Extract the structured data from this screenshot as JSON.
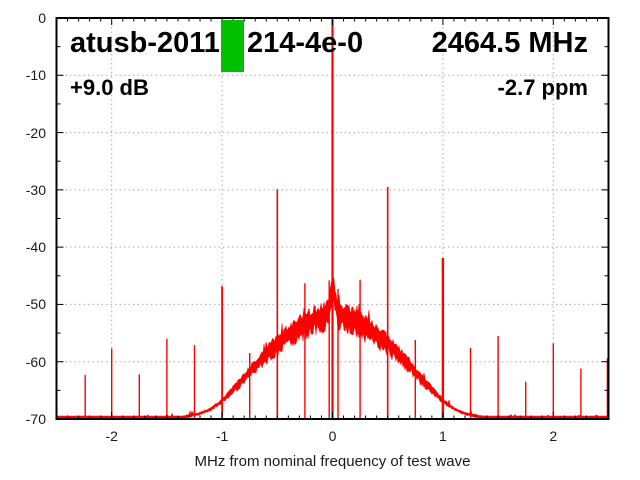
{
  "title": {
    "device_id_left": "atusb-2011",
    "device_id_right": "214-4e-0",
    "frequency": "2464.5 MHz"
  },
  "annotations": {
    "gain": "+9.0 dB",
    "ppm_offset": "-2.7 ppm"
  },
  "marker": {
    "color": "#00c000"
  },
  "colors": {
    "trace": "#ff0000",
    "grid": "#ababab",
    "border": "#000000",
    "tick_text": "#1a1a1a",
    "title_text": "#000000",
    "background": "#ffffff"
  },
  "chart_data": {
    "type": "line",
    "subtype": "rf-spectrum",
    "title": "atusb-2011[marker]214-4e-0  2464.5 MHz  (+9.0 dB, -2.7 ppm)",
    "xlabel": "MHz from nominal frequency of test wave",
    "ylabel": "",
    "xlim": [
      -2.5,
      2.5
    ],
    "ylim": [
      -70,
      0
    ],
    "grid": true,
    "x_ticks": [
      -2,
      -1,
      0,
      1,
      2
    ],
    "x_tick_labels": [
      "-2",
      "-1",
      "0",
      "1",
      "2"
    ],
    "x_minor_step": 0.1,
    "y_ticks": [
      0,
      -10,
      -20,
      -30,
      -40,
      -50,
      -60,
      -70
    ],
    "y_tick_labels": [
      "0",
      "-10",
      "-20",
      "-30",
      "-40",
      "-50",
      "-60",
      "-70"
    ],
    "y_minor_step": 5,
    "carrier": {
      "freq_mhz": 0.0,
      "peak_db": -0.2
    },
    "spikes": [
      [
        -2.24,
        -62.3
      ],
      [
        -2.0,
        -57.7
      ],
      [
        -1.75,
        -62.2
      ],
      [
        -1.5,
        -56.0
      ],
      [
        -1.25,
        -57.1
      ],
      [
        -1.0,
        -46.8,
        1.8
      ],
      [
        -0.75,
        -58.5
      ],
      [
        -0.5,
        -29.9,
        1.6
      ],
      [
        -0.25,
        -46.3
      ],
      [
        -0.03,
        -45.8
      ],
      [
        0.0,
        -0.2,
        2.2
      ],
      [
        0.05,
        -47.3
      ],
      [
        0.25,
        -45.7
      ],
      [
        0.5,
        -29.5,
        1.6
      ],
      [
        0.75,
        -56.2
      ],
      [
        1.0,
        -41.9,
        2.4
      ],
      [
        1.25,
        -57.6
      ],
      [
        1.5,
        -55.5
      ],
      [
        1.75,
        -63.5
      ],
      [
        2.0,
        -56.8
      ],
      [
        2.25,
        -61.2
      ],
      [
        2.49,
        -59.4
      ]
    ],
    "noise_envelope_abs_freq_db": [
      [
        0.0,
        -51.3
      ],
      [
        0.1,
        -51.7
      ],
      [
        0.2,
        -52.6
      ],
      [
        0.3,
        -53.8
      ],
      [
        0.4,
        -55.2
      ],
      [
        0.5,
        -56.7
      ],
      [
        0.6,
        -58.5
      ],
      [
        0.7,
        -60.5
      ],
      [
        0.8,
        -62.8
      ],
      [
        0.9,
        -64.8
      ],
      [
        1.0,
        -66.8
      ],
      [
        1.1,
        -68.2
      ],
      [
        1.2,
        -69.0
      ],
      [
        1.35,
        -69.6
      ],
      [
        1.55,
        -70.0
      ],
      [
        2.5,
        -70.0
      ]
    ],
    "carrier_pedestal": {
      "amp_db": 4.5,
      "sigma_mhz": 0.022
    }
  }
}
